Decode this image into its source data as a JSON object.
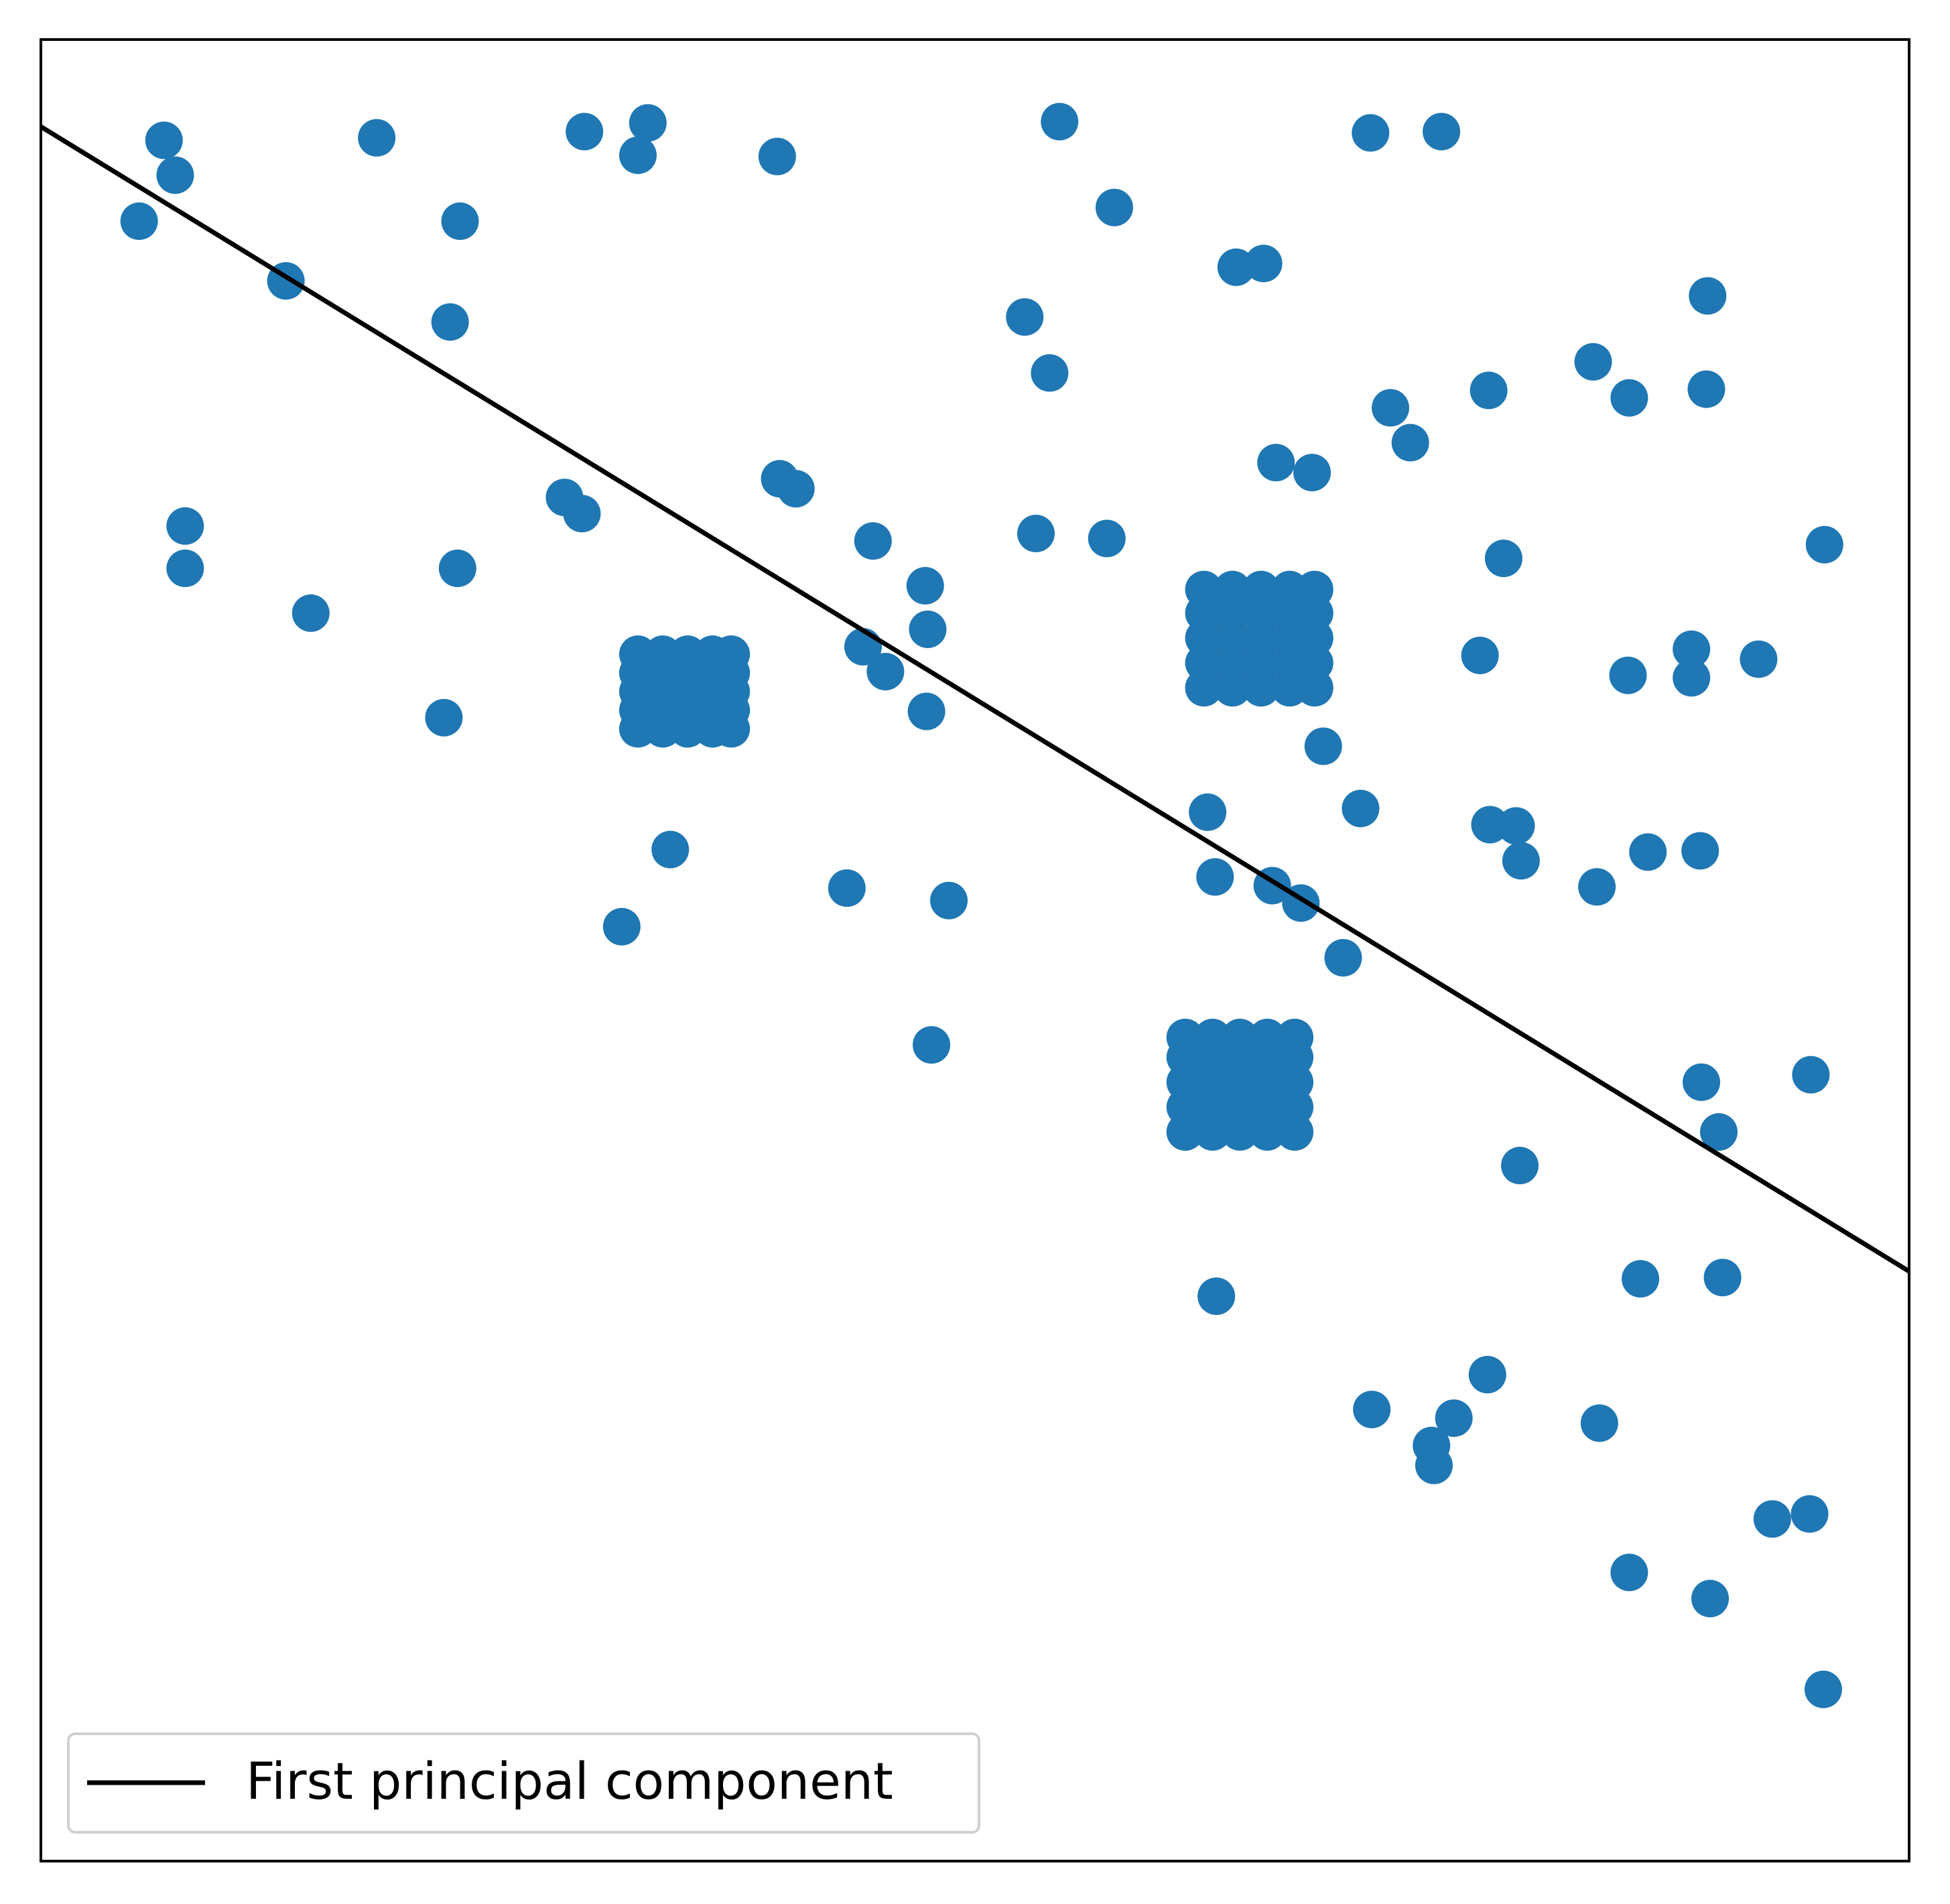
{
  "chart_data": {
    "type": "scatter",
    "xlim": [
      0,
      1502
    ],
    "ylim": [
      0,
      1464
    ],
    "legend": "lower left",
    "points": {
      "color": "#1f77b4",
      "x": [
        99,
        108,
        79,
        197,
        270,
        337,
        329,
        437,
        488,
        480,
        592,
        819,
        863,
        961,
        983,
        791,
        811,
        1069,
        1126,
        1340,
        1248,
        1277,
        1339,
        1164,
        1085,
        1101,
        993,
        1022,
        116,
        116,
        335,
        217,
        421,
        435,
        594,
        607,
        669,
        711,
        713,
        800,
        857,
        1434,
        1176,
        1157,
        1276,
        1327,
        1327,
        1381,
        661,
        679,
        712,
        324,
        506,
        467,
        648,
        730,
        716,
        938,
        944,
        1031,
        1061,
        1165,
        1186,
        1190,
        1251,
        1292,
        1334,
        990,
        1013,
        1047,
        1335,
        1423,
        1349,
        1189,
        945,
        1286,
        1352,
        1163,
        1070,
        1136,
        1118,
        1120,
        1253,
        1392,
        1422,
        1277,
        1342,
        1433,
        480,
        500,
        520,
        540,
        555,
        480,
        500,
        520,
        540,
        555,
        480,
        500,
        520,
        540,
        555,
        480,
        500,
        520,
        540,
        555,
        480,
        500,
        520,
        540,
        555,
        935,
        958,
        981,
        1004,
        1024,
        935,
        958,
        981,
        1004,
        1024,
        935,
        958,
        981,
        1004,
        1024,
        935,
        958,
        981,
        1004,
        1024,
        935,
        958,
        981,
        1004,
        1024,
        920,
        942,
        964,
        986,
        1008,
        920,
        942,
        964,
        986,
        1008,
        920,
        942,
        964,
        986,
        1008,
        920,
        942,
        964,
        986,
        1008,
        920,
        942,
        964,
        986,
        1008
      ],
      "y": [
        1383,
        1355,
        1318,
        1270,
        1385,
        1318,
        1237,
        1390,
        1397,
        1371,
        1370,
        1398,
        1329,
        1281,
        1284,
        1241,
        1196,
        1389,
        1390,
        1258,
        1205,
        1176,
        1183,
        1182,
        1168,
        1140,
        1124,
        1116,
        1073,
        1039,
        1039,
        1003,
        1096,
        1083,
        1111,
        1103,
        1061,
        1025,
        990,
        1067,
        1063,
        1058,
        1047,
        969,
        953,
        974,
        951,
        966,
        976,
        956,
        924,
        919,
        813,
        751,
        782,
        772,
        656,
        843,
        791,
        896,
        846,
        833,
        832,
        804,
        783,
        811,
        812,
        784,
        770,
        726,
        626,
        632,
        586,
        559,
        454,
        468,
        469,
        391,
        363,
        356,
        334,
        318,
        352,
        275,
        279,
        232,
        211,
        138,
        910,
        910,
        910,
        910,
        910,
        925,
        925,
        925,
        925,
        925,
        940,
        940,
        940,
        940,
        940,
        955,
        955,
        955,
        955,
        955,
        970,
        970,
        970,
        970,
        970,
        943,
        943,
        943,
        943,
        943,
        963,
        963,
        963,
        963,
        963,
        983,
        983,
        983,
        983,
        983,
        1003,
        1003,
        1003,
        1003,
        1003,
        1022,
        1022,
        1022,
        1022,
        1022,
        586,
        586,
        586,
        586,
        586,
        606,
        606,
        606,
        606,
        606,
        626,
        626,
        626,
        626,
        626,
        646,
        646,
        646,
        646,
        646,
        662,
        662,
        662,
        662,
        662
      ]
    },
    "line": {
      "name": "First principal component",
      "color": "#000000",
      "x": [
        0,
        1502
      ],
      "y": [
        1394,
        474
      ]
    }
  }
}
